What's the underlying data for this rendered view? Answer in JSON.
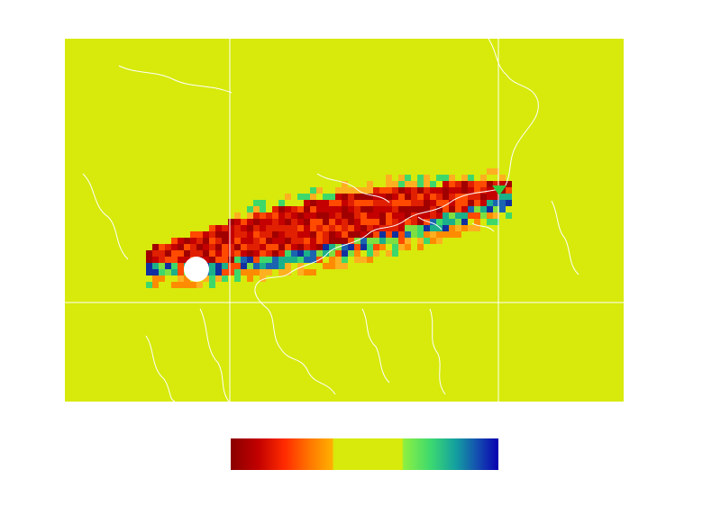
{
  "map": {
    "background_color": "#d7ea0c",
    "coastline_color": "#ffffff",
    "gridline_color": "#ffffff",
    "source_marker": {
      "shape": "circle",
      "color": "#ffffff"
    },
    "receptor_marker": {
      "shape": "triangle-down",
      "color": "#2ecc40"
    },
    "plume_palette": [
      "#a10000",
      "#c40000",
      "#e02000",
      "#ff4a00",
      "#ff8c00",
      "#ffb020",
      "#d7ea0c",
      "#7ee040",
      "#3ed86a",
      "#1bb08a",
      "#1a64b0",
      "#1030a0"
    ]
  },
  "colorbar": {
    "label": "",
    "stops": [
      {
        "offset": 0.0,
        "color": "#8a0000"
      },
      {
        "offset": 0.1,
        "color": "#c00000"
      },
      {
        "offset": 0.2,
        "color": "#ff2a00"
      },
      {
        "offset": 0.3,
        "color": "#ff7a00"
      },
      {
        "offset": 0.38,
        "color": "#ffb000"
      },
      {
        "offset": 0.385,
        "color": "#d7ea0c"
      },
      {
        "offset": 0.64,
        "color": "#d7ea0c"
      },
      {
        "offset": 0.645,
        "color": "#8ef040"
      },
      {
        "offset": 0.75,
        "color": "#3ad870"
      },
      {
        "offset": 0.84,
        "color": "#14a0a0"
      },
      {
        "offset": 0.92,
        "color": "#1450b0"
      },
      {
        "offset": 1.0,
        "color": "#0a00b0"
      }
    ]
  }
}
